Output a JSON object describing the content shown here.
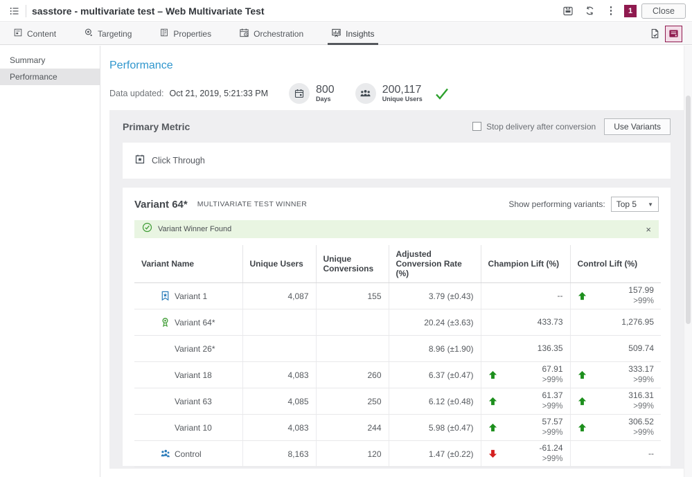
{
  "topbar": {
    "title": "sasstore - multivariate test – Web Multivariate Test",
    "badge_count": "1",
    "close_label": "Close"
  },
  "tabs": [
    {
      "label": "Content"
    },
    {
      "label": "Targeting"
    },
    {
      "label": "Properties"
    },
    {
      "label": "Orchestration"
    },
    {
      "label": "Insights"
    }
  ],
  "sidebar": {
    "items": [
      {
        "label": "Summary"
      },
      {
        "label": "Performance"
      }
    ]
  },
  "page": {
    "title": "Performance",
    "data_updated_label": "Data updated:",
    "data_updated_value": "Oct 21, 2019, 5:21:33 PM",
    "stats": [
      {
        "icon": "calendar-icon",
        "value": "800",
        "label": "Days"
      },
      {
        "icon": "users-icon",
        "value": "200,117",
        "label": "Unique Users"
      }
    ]
  },
  "primary_metric": {
    "title": "Primary Metric",
    "checkbox_label": "Stop delivery after conversion",
    "checkbox_checked": false,
    "use_variants_label": "Use Variants",
    "metric_name": "Click Through"
  },
  "winner_section": {
    "title": "Variant 64*",
    "subtitle": "MULTIVARIATE TEST WINNER",
    "show_variants_label": "Show performing variants:",
    "show_variants_value": "Top 5",
    "banner_text": "Variant Winner Found",
    "banner_close": "×"
  },
  "table": {
    "headers": [
      "Variant Name",
      "Unique Users",
      "Unique Conversions",
      "Adjusted Conversion Rate (%)",
      "Champion Lift (%)",
      "Control Lift (%)"
    ],
    "rows": [
      {
        "icon": "champion-flag-icon",
        "name": "Variant 1",
        "unique_users": "4,087",
        "unique_conversions": "155",
        "adjusted_rate": "3.79 (±0.43)",
        "champion_lift": {
          "value": "--"
        },
        "control_lift": {
          "arrow": "up",
          "value": "157.99",
          "confidence": ">99%"
        }
      },
      {
        "icon": "winner-medal-icon",
        "name": "Variant 64*",
        "unique_users": "",
        "unique_conversions": "",
        "adjusted_rate": "20.24 (±3.63)",
        "champion_lift": {
          "value": "433.73"
        },
        "control_lift": {
          "value": "1,276.95"
        }
      },
      {
        "icon": null,
        "name": "Variant 26*",
        "unique_users": "",
        "unique_conversions": "",
        "adjusted_rate": "8.96 (±1.90)",
        "champion_lift": {
          "value": "136.35"
        },
        "control_lift": {
          "value": "509.74"
        }
      },
      {
        "icon": null,
        "name": "Variant 18",
        "unique_users": "4,083",
        "unique_conversions": "260",
        "adjusted_rate": "6.37 (±0.47)",
        "champion_lift": {
          "arrow": "up",
          "value": "67.91",
          "confidence": ">99%"
        },
        "control_lift": {
          "arrow": "up",
          "value": "333.17",
          "confidence": ">99%"
        }
      },
      {
        "icon": null,
        "name": "Variant 63",
        "unique_users": "4,085",
        "unique_conversions": "250",
        "adjusted_rate": "6.12 (±0.48)",
        "champion_lift": {
          "arrow": "up",
          "value": "61.37",
          "confidence": ">99%"
        },
        "control_lift": {
          "arrow": "up",
          "value": "316.31",
          "confidence": ">99%"
        }
      },
      {
        "icon": null,
        "name": "Variant 10",
        "unique_users": "4,083",
        "unique_conversions": "244",
        "adjusted_rate": "5.98 (±0.47)",
        "champion_lift": {
          "arrow": "up",
          "value": "57.57",
          "confidence": ">99%"
        },
        "control_lift": {
          "arrow": "up",
          "value": "306.52",
          "confidence": ">99%"
        }
      },
      {
        "icon": "control-group-icon",
        "name": "Control",
        "unique_users": "8,163",
        "unique_conversions": "120",
        "adjusted_rate": "1.47 (±0.22)",
        "champion_lift": {
          "arrow": "down",
          "value": "-61.24",
          "confidence": ">99%"
        },
        "control_lift": {
          "value": "--"
        }
      }
    ]
  },
  "colors": {
    "accent_blue": "#2f96cd",
    "brand_maroon": "#8f1a4f",
    "positive_green": "#1d8f1d",
    "negative_red": "#d42020",
    "banner_green_bg": "#e9f5e2",
    "banner_green_icon": "#3f9c35"
  }
}
